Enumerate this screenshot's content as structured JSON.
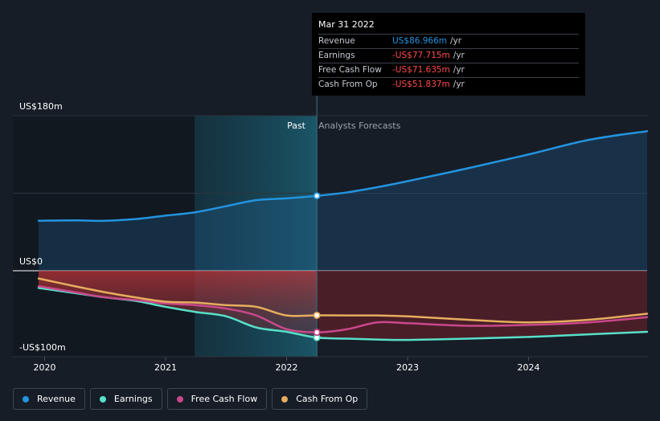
{
  "chart_data": {
    "type": "area",
    "y_unit": "US$m",
    "ylim": [
      -100,
      180
    ],
    "xlim": [
      2019.95,
      2024.98
    ],
    "y_tick_labels": [
      {
        "value": 180,
        "label": "US$180m"
      },
      {
        "value": 0,
        "label": "US$0"
      },
      {
        "value": -100,
        "label": "-US$100m"
      }
    ],
    "x_ticks": [
      {
        "value": 2020,
        "label": "2020"
      },
      {
        "value": 2021,
        "label": "2021"
      },
      {
        "value": 2022,
        "label": "2022"
      },
      {
        "value": 2023,
        "label": "2023"
      },
      {
        "value": 2024,
        "label": "2024"
      }
    ],
    "past_label": "Past",
    "forecast_label": "Analysts Forecasts",
    "divider_x": 2022.25,
    "highlight_start_x": 2021.24,
    "series": [
      {
        "name": "Revenue",
        "color": "#2394df",
        "points": [
          [
            2019.95,
            58
          ],
          [
            2020.25,
            58.5
          ],
          [
            2020.5,
            58
          ],
          [
            2020.75,
            60
          ],
          [
            2021.0,
            64
          ],
          [
            2021.25,
            68
          ],
          [
            2021.5,
            75
          ],
          [
            2021.75,
            82
          ],
          [
            2022.0,
            84
          ],
          [
            2022.25,
            86.966
          ],
          [
            2022.5,
            91
          ],
          [
            2022.75,
            97
          ],
          [
            2023.0,
            104
          ],
          [
            2023.5,
            119
          ],
          [
            2024.0,
            135
          ],
          [
            2024.5,
            152
          ],
          [
            2024.98,
            162
          ]
        ]
      },
      {
        "name": "Earnings",
        "color": "#58e0c8",
        "points": [
          [
            2019.95,
            -20
          ],
          [
            2020.25,
            -26
          ],
          [
            2020.5,
            -31
          ],
          [
            2020.75,
            -35
          ],
          [
            2021.0,
            -42
          ],
          [
            2021.25,
            -48
          ],
          [
            2021.5,
            -53
          ],
          [
            2021.75,
            -66
          ],
          [
            2022.0,
            -71
          ],
          [
            2022.25,
            -77.715
          ],
          [
            2022.5,
            -79
          ],
          [
            2022.75,
            -80
          ],
          [
            2023.0,
            -80.5
          ],
          [
            2023.5,
            -79
          ],
          [
            2024.0,
            -77
          ],
          [
            2024.5,
            -74
          ],
          [
            2024.98,
            -71
          ]
        ]
      },
      {
        "name": "Free Cash Flow",
        "color": "#c9488b",
        "points": [
          [
            2019.95,
            -18
          ],
          [
            2020.25,
            -25
          ],
          [
            2020.5,
            -31
          ],
          [
            2020.75,
            -34
          ],
          [
            2021.0,
            -38
          ],
          [
            2021.25,
            -40
          ],
          [
            2021.5,
            -44
          ],
          [
            2021.75,
            -52
          ],
          [
            2022.0,
            -68
          ],
          [
            2022.25,
            -71.635
          ],
          [
            2022.5,
            -68
          ],
          [
            2022.75,
            -60
          ],
          [
            2023.0,
            -61
          ],
          [
            2023.5,
            -64
          ],
          [
            2024.0,
            -63
          ],
          [
            2024.5,
            -60
          ],
          [
            2024.98,
            -54
          ]
        ]
      },
      {
        "name": "Cash From Op",
        "color": "#e6ad5e",
        "points": [
          [
            2019.95,
            -9
          ],
          [
            2020.25,
            -18
          ],
          [
            2020.5,
            -25
          ],
          [
            2020.75,
            -31
          ],
          [
            2021.0,
            -36
          ],
          [
            2021.25,
            -37
          ],
          [
            2021.5,
            -40
          ],
          [
            2021.75,
            -42
          ],
          [
            2022.0,
            -52
          ],
          [
            2022.25,
            -51.837
          ],
          [
            2022.5,
            -52
          ],
          [
            2022.75,
            -52
          ],
          [
            2023.0,
            -53
          ],
          [
            2023.5,
            -57
          ],
          [
            2024.0,
            -60
          ],
          [
            2024.5,
            -57
          ],
          [
            2024.98,
            -50
          ]
        ]
      }
    ]
  },
  "tooltip": {
    "date": "Mar 31 2022",
    "rows": [
      {
        "label": "Revenue",
        "value": "US$86.966m",
        "unit": "/yr"
      },
      {
        "label": "Earnings",
        "value": "-US$77.715m",
        "unit": "/yr"
      },
      {
        "label": "Free Cash Flow",
        "value": "-US$71.635m",
        "unit": "/yr"
      },
      {
        "label": "Cash From Op",
        "value": "-US$51.837m",
        "unit": "/yr"
      }
    ]
  },
  "legend": [
    {
      "label": "Revenue",
      "color": "#2394df"
    },
    {
      "label": "Earnings",
      "color": "#58e0c8"
    },
    {
      "label": "Free Cash Flow",
      "color": "#c9488b"
    },
    {
      "label": "Cash From Op",
      "color": "#e6ad5e"
    }
  ]
}
